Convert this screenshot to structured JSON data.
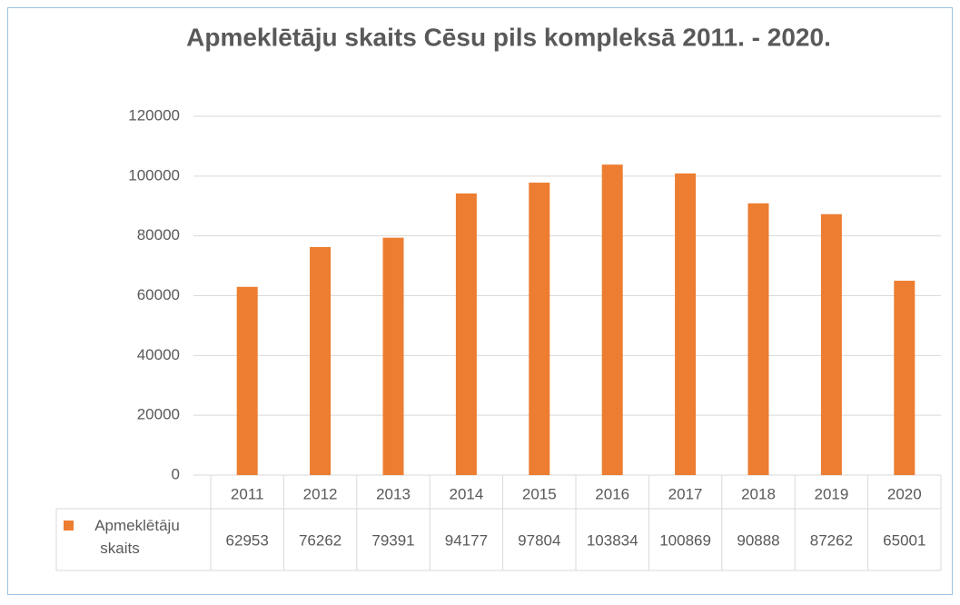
{
  "chart_data": {
    "type": "bar",
    "title": "Apmeklētāju skaits Cēsu pils kompleksā 2011. - 2020.",
    "categories": [
      "2011",
      "2012",
      "2013",
      "2014",
      "2015",
      "2016",
      "2017",
      "2018",
      "2019",
      "2020"
    ],
    "series": [
      {
        "name": "Apmeklētāju skaits",
        "color": "#ed7d31",
        "values": [
          62953,
          76262,
          79391,
          94177,
          97804,
          103834,
          100869,
          90888,
          87262,
          65001
        ]
      }
    ],
    "ylim": [
      0,
      120000
    ],
    "yticks": [
      0,
      20000,
      40000,
      60000,
      80000,
      100000,
      120000
    ],
    "grid": true
  }
}
